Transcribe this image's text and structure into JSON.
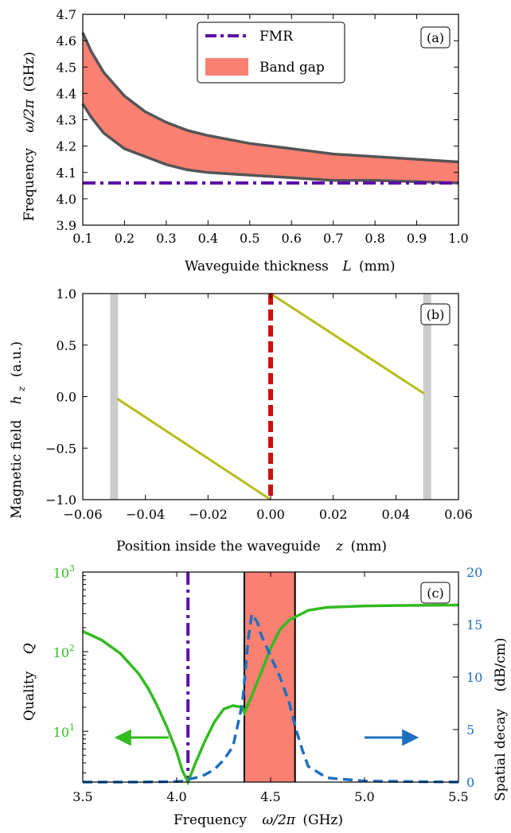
{
  "chart_data": [
    {
      "type": "line",
      "panel_label": "(a)",
      "xlabel": "Waveguide thickness",
      "xlabel_sym": "L",
      "xlabel_unit": "(mm)",
      "ylabel": "Frequency",
      "ylabel_sym": "ω/2π",
      "ylabel_unit": "(GHz)",
      "xlim": [
        0.1,
        1.0
      ],
      "ylim": [
        3.9,
        4.7
      ],
      "x_ticks": [
        "0.1",
        "0.2",
        "0.3",
        "0.4",
        "0.5",
        "0.6",
        "0.7",
        "0.8",
        "0.9",
        "1.0"
      ],
      "y_ticks": [
        "3.9",
        "4.0",
        "4.1",
        "4.2",
        "4.3",
        "4.4",
        "4.5",
        "4.6",
        "4.7"
      ],
      "legend": {
        "placement": "top-center",
        "items": [
          "FMR",
          "Band gap"
        ]
      },
      "colors": {
        "fmr": "#5b0fa8",
        "band_fill": "#fa8072",
        "band_edge": "#555555"
      },
      "fmr_freq": 4.06,
      "band_upper": {
        "x": [
          0.1,
          0.12,
          0.15,
          0.2,
          0.25,
          0.3,
          0.35,
          0.4,
          0.5,
          0.6,
          0.7,
          0.8,
          0.9,
          1.0
        ],
        "y": [
          4.63,
          4.56,
          4.48,
          4.39,
          4.33,
          4.29,
          4.26,
          4.24,
          4.21,
          4.19,
          4.17,
          4.16,
          4.15,
          4.14
        ]
      },
      "band_lower": {
        "x": [
          0.1,
          0.12,
          0.15,
          0.2,
          0.25,
          0.3,
          0.35,
          0.4,
          0.5,
          0.6,
          0.7,
          0.8,
          0.9,
          1.0
        ],
        "y": [
          4.36,
          4.31,
          4.25,
          4.19,
          4.16,
          4.13,
          4.11,
          4.1,
          4.09,
          4.08,
          4.07,
          4.07,
          4.065,
          4.06
        ]
      }
    },
    {
      "type": "line",
      "panel_label": "(b)",
      "xlabel": "Position inside the waveguide",
      "xlabel_sym": "z",
      "xlabel_unit": "(mm)",
      "ylabel": "Magnetic field",
      "ylabel_sym": "h",
      "ylabel_sub": "z",
      "ylabel_unit": "(a.u.)",
      "xlim": [
        -0.06,
        0.06
      ],
      "ylim": [
        -1.0,
        1.0
      ],
      "x_ticks": [
        "−0.06",
        "−0.04",
        "−0.02",
        "0.00",
        "0.02",
        "0.04",
        "0.06"
      ],
      "y_ticks": [
        "−1.0",
        "−0.5",
        "0.0",
        "0.5",
        "1.0"
      ],
      "colors": {
        "field": "#b5bd1a",
        "center": "#cc1111",
        "walls": "#cccccc"
      },
      "walls_x": [
        -0.05,
        0.05
      ],
      "center_x": 0.0,
      "segments": [
        {
          "x": [
            -0.049,
            0.0
          ],
          "y": [
            -0.02,
            -1.0
          ]
        },
        {
          "x": [
            0.0,
            0.049
          ],
          "y": [
            1.0,
            0.03
          ]
        }
      ]
    },
    {
      "type": "line",
      "panel_label": "(c)",
      "xlabel": "Frequency",
      "xlabel_sym": "ω/2π",
      "xlabel_unit": "(GHz)",
      "ylabel_left": "Quality",
      "ylabel_left_sym": "Q",
      "ylabel_right": "Spatial decay",
      "ylabel_right_unit": "(dB/cm)",
      "xlim": [
        3.5,
        5.5
      ],
      "ylim_left_log": [
        2.3,
        1000
      ],
      "ylim_right": [
        0,
        20
      ],
      "x_ticks": [
        "3.5",
        "4.0",
        "4.5",
        "5.0",
        "5.5"
      ],
      "y_left_ticks": [
        {
          "v": 10,
          "base": "10",
          "exp": "1"
        },
        {
          "v": 100,
          "base": "10",
          "exp": "2"
        },
        {
          "v": 1000,
          "base": "10",
          "exp": "3"
        }
      ],
      "y_right_ticks": [
        "0",
        "5",
        "10",
        "15",
        "20"
      ],
      "colors": {
        "quality": "#33bb22",
        "decay": "#1f6fbf",
        "fmr": "#5b0fa8",
        "band_fill": "#fa8072"
      },
      "fmr_freq": 4.06,
      "band_gap": [
        4.36,
        4.63
      ],
      "series": [
        {
          "name": "Quality",
          "axis": "left",
          "x": [
            3.5,
            3.6,
            3.7,
            3.8,
            3.85,
            3.9,
            3.95,
            4.0,
            4.03,
            4.06,
            4.1,
            4.15,
            4.2,
            4.25,
            4.3,
            4.35,
            4.36,
            4.4,
            4.45,
            4.5,
            4.55,
            4.6,
            4.7,
            4.8,
            5.0,
            5.2,
            5.5
          ],
          "y": [
            180,
            140,
            95,
            52,
            34,
            20,
            11,
            5.5,
            3.2,
            2.3,
            4,
            7.5,
            13,
            19,
            21,
            20,
            17,
            28,
            55,
            110,
            190,
            250,
            330,
            360,
            375,
            380,
            385
          ]
        },
        {
          "name": "Spatial decay",
          "axis": "right",
          "x": [
            3.5,
            3.8,
            4.0,
            4.05,
            4.07,
            4.1,
            4.15,
            4.2,
            4.25,
            4.3,
            4.35,
            4.38,
            4.4,
            4.43,
            4.45,
            4.5,
            4.55,
            4.6,
            4.63,
            4.67,
            4.7,
            4.8,
            5.0,
            5.5
          ],
          "y": [
            0,
            0,
            0.05,
            0.1,
            0.3,
            0.4,
            0.7,
            1.2,
            2.1,
            3.4,
            7.5,
            13.5,
            16,
            15.2,
            14,
            12,
            10,
            7.5,
            5.3,
            3,
            1.5,
            0.4,
            0.1,
            0
          ]
        }
      ]
    }
  ]
}
